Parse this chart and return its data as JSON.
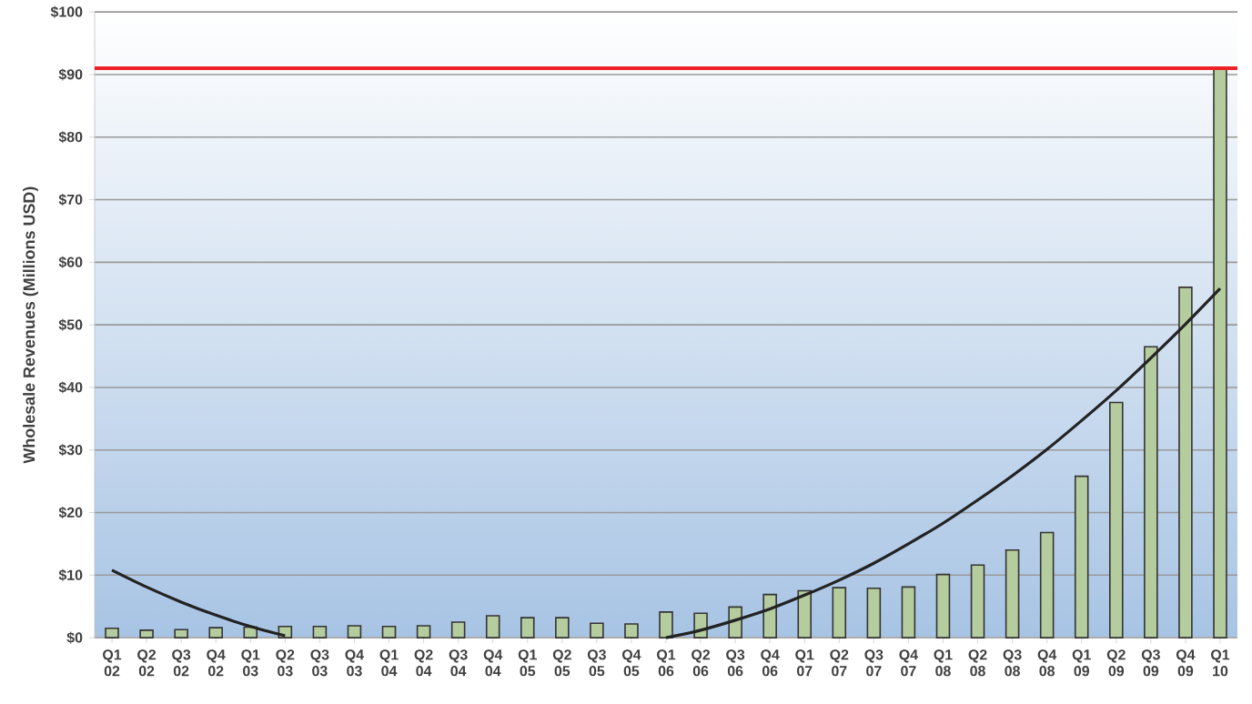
{
  "chart_data": {
    "type": "bar",
    "ylabel": "Wholesale Revenues (Millions USD)",
    "categories": [
      "Q1 02",
      "Q2 02",
      "Q3 02",
      "Q4 02",
      "Q1 03",
      "Q2 03",
      "Q3 03",
      "Q4 03",
      "Q1 04",
      "Q2 04",
      "Q3 04",
      "Q4 04",
      "Q1 05",
      "Q2 05",
      "Q3 05",
      "Q4 05",
      "Q1 06",
      "Q2 06",
      "Q3 06",
      "Q4 06",
      "Q1 07",
      "Q2 07",
      "Q3 07",
      "Q4 07",
      "Q1 08",
      "Q2 08",
      "Q3 08",
      "Q4 08",
      "Q1 09",
      "Q2 09",
      "Q3 09",
      "Q4 09",
      "Q1 10"
    ],
    "series": [
      {
        "color": "#b5cc9e",
        "values": [
          1.5,
          1.2,
          1.3,
          1.6,
          1.7,
          1.8,
          1.8,
          1.9,
          1.8,
          1.9,
          2.5,
          3.5,
          3.2,
          3.2,
          2.3,
          2.2,
          4.1,
          3.9,
          4.9,
          6.9,
          7.5,
          8.0,
          7.9,
          8.1,
          10.1,
          11.6,
          14.0,
          16.8,
          25.8,
          37.6,
          46.5,
          56,
          91
        ]
      },
      {
        "type": "line",
        "color": "#222222",
        "x": [
          "Q1 02",
          "Q2 02",
          "Q3 02",
          "Q4 02",
          "Q1 03",
          "Q2 03"
        ],
        "values": [
          10.8,
          8.1,
          5.7,
          3.6,
          1.8,
          0.3
        ]
      },
      {
        "type": "line",
        "color": "#222222",
        "x": [
          "Q1 06",
          "Q2 06",
          "Q3 06",
          "Q4 06",
          "Q1 07",
          "Q2 07",
          "Q3 07",
          "Q4 07",
          "Q1 08",
          "Q2 08",
          "Q3 08",
          "Q4 08",
          "Q1 09",
          "Q2 09",
          "Q3 09",
          "Q4 09",
          "Q1 10"
        ],
        "values": [
          0,
          1.2,
          2.8,
          4.6,
          6.8,
          9.2,
          11.9,
          15.0,
          18.3,
          22.0,
          25.9,
          30.1,
          34.7,
          39.5,
          44.7,
          50.1,
          55.8
        ]
      }
    ],
    "ylim": [
      0,
      100
    ],
    "yticks": [
      {
        "value": 0,
        "label": "$0"
      },
      {
        "value": 10,
        "label": "$10"
      },
      {
        "value": 20,
        "label": "$20"
      },
      {
        "value": 30,
        "label": "$30"
      },
      {
        "value": 40,
        "label": "$40"
      },
      {
        "value": 50,
        "label": "$50"
      },
      {
        "value": 60,
        "label": "$60"
      },
      {
        "value": 70,
        "label": "$70"
      },
      {
        "value": 80,
        "label": "$80"
      },
      {
        "value": 90,
        "label": "$90"
      },
      {
        "value": 100,
        "label": "$100"
      }
    ],
    "ref_lines": [
      {
        "axis": "y",
        "value": 91,
        "color": "#ee2028"
      }
    ],
    "grid": "y"
  }
}
